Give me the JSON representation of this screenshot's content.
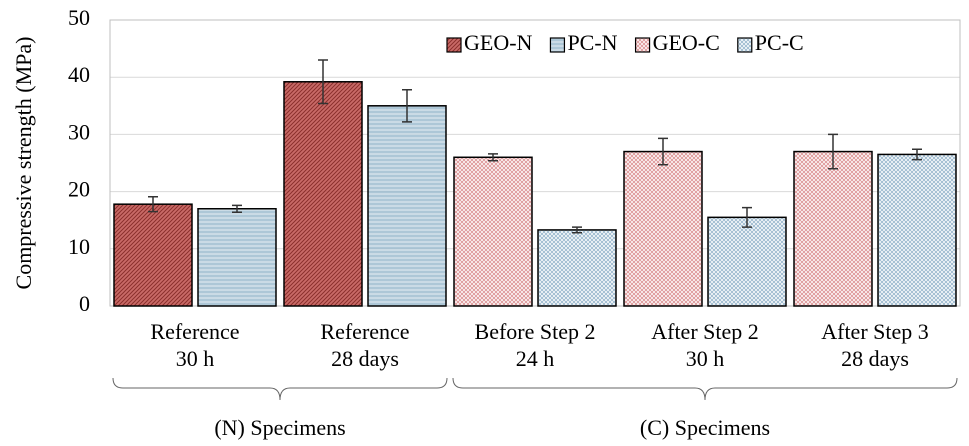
{
  "chart_data": {
    "type": "bar",
    "y_label": "Compressive strength (MPa)",
    "categories": [
      [
        "Reference",
        "30 h"
      ],
      [
        "Reference",
        "28 days"
      ],
      [
        "Before Step 2",
        "24 h"
      ],
      [
        "After Step 2",
        "30 h"
      ],
      [
        "After Step 3",
        "28 days"
      ]
    ],
    "groups": [
      {
        "label": "(N) Specimens",
        "span": 2
      },
      {
        "label": "(C) Specimens",
        "span": 3
      }
    ],
    "series": [
      {
        "name": "GEO-N",
        "color": "#c0504d",
        "hatch": "diagonal",
        "values": [
          17.8,
          39.2,
          null,
          null,
          null
        ],
        "errors": [
          1.3,
          3.8,
          null,
          null,
          null
        ]
      },
      {
        "name": "PC-N",
        "color": "#9fbdd0",
        "hatch": "horizontal",
        "values": [
          17,
          35,
          null,
          null,
          null
        ],
        "errors": [
          0.6,
          2.8,
          null,
          null,
          null
        ]
      },
      {
        "name": "GEO-C",
        "color": "#d9888a",
        "hatch": "crosshatch",
        "values": [
          null,
          null,
          26,
          27,
          27
        ],
        "errors": [
          null,
          null,
          0.6,
          2.3,
          3.0
        ]
      },
      {
        "name": "PC-C",
        "color": "#8fb0c8",
        "hatch": "crosshatch",
        "values": [
          null,
          null,
          13.3,
          15.5,
          26.5
        ],
        "errors": [
          null,
          null,
          0.5,
          1.7,
          0.9
        ]
      }
    ],
    "ylim": [
      0,
      50
    ],
    "yticks": [
      0,
      10,
      20,
      30,
      40,
      50
    ],
    "grid": true,
    "legend": "top-right"
  }
}
